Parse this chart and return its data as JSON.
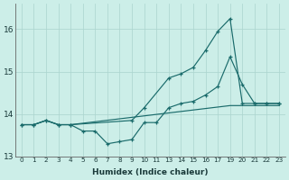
{
  "xlabel": "Humidex (Indice chaleur)",
  "bg_color": "#cceee8",
  "grid_color": "#aad4ce",
  "line_color": "#1a6b6b",
  "xtick_labels": [
    "0",
    "1",
    "2",
    "3",
    "4",
    "5",
    "6",
    "7",
    "8",
    "9",
    "10",
    "11",
    "13",
    "14",
    "15",
    "16",
    "17",
    "19",
    "20",
    "21",
    "22",
    "23"
  ],
  "line1_x": [
    0,
    1,
    2,
    3,
    4,
    9,
    10,
    12,
    13,
    14,
    15,
    16,
    17,
    18,
    19,
    20,
    21
  ],
  "line1_y": [
    13.75,
    13.75,
    13.85,
    13.75,
    13.75,
    13.85,
    14.15,
    14.85,
    14.95,
    15.1,
    15.5,
    15.95,
    16.25,
    14.25,
    14.25,
    14.25,
    14.25
  ],
  "line2_x": [
    0,
    1,
    2,
    3,
    4,
    5,
    6,
    7,
    8,
    9,
    10,
    11,
    12,
    13,
    14,
    15,
    16,
    17,
    18,
    19,
    20,
    21
  ],
  "line2_y": [
    13.75,
    13.75,
    13.85,
    13.75,
    13.75,
    13.6,
    13.6,
    13.3,
    13.35,
    13.4,
    13.8,
    13.8,
    14.15,
    14.25,
    14.3,
    14.45,
    14.65,
    15.35,
    14.7,
    14.25,
    14.25,
    14.25
  ],
  "line3_x": [
    0,
    1,
    2,
    3,
    4,
    17,
    18,
    19,
    20,
    21
  ],
  "line3_y": [
    13.75,
    13.75,
    13.85,
    13.75,
    13.75,
    14.2,
    14.2,
    14.2,
    14.2,
    14.2
  ],
  "ylim": [
    13.0,
    16.6
  ],
  "yticks": [
    13,
    14,
    15,
    16
  ],
  "num_xticks": 22
}
